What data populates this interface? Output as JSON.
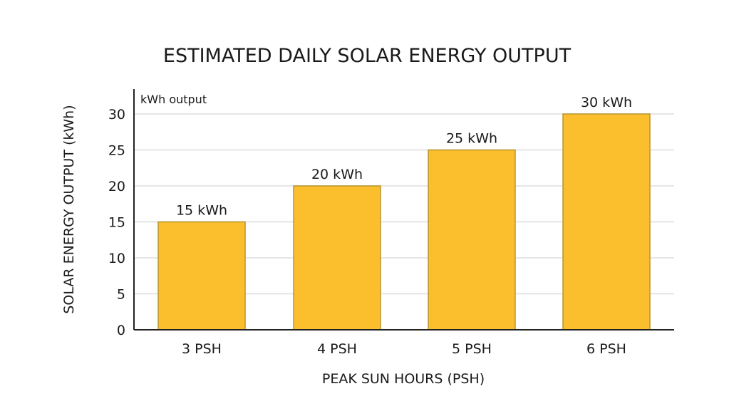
{
  "chart_data": {
    "type": "bar",
    "title": "ESTIMATED DAILY SOLAR ENERGY OUTPUT",
    "xlabel": "PEAK SUN HOURS (PSH)",
    "ylabel": "SOLAR ENERGY OUTPUT (kWh)",
    "corner_label": "kWh output",
    "categories": [
      "3 PSH",
      "4 PSH",
      "5 PSH",
      "6 PSH"
    ],
    "values": [
      15,
      20,
      25,
      30
    ],
    "data_labels": [
      "15 kWh",
      "20 kWh",
      "25 kWh",
      "30 kWh"
    ],
    "yticks": [
      0,
      5,
      10,
      15,
      20,
      25,
      30
    ],
    "ylim": [
      0,
      30
    ],
    "grid": true,
    "colors": {
      "bar": "#FBBF2E",
      "bar_border": "#B8962E",
      "grid": "#dddddd",
      "axis": "#222222"
    }
  }
}
